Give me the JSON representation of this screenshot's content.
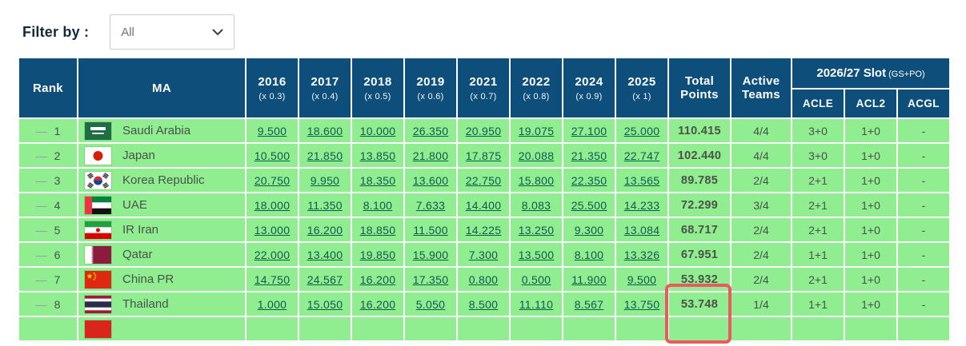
{
  "filter": {
    "label": "Filter by :",
    "value": "All"
  },
  "colors": {
    "header_bg": "#0e4e7b",
    "row_bg": "#90ee90",
    "link": "#10594e",
    "highlight": "#ec5a5f"
  },
  "table": {
    "col_rank": "Rank",
    "col_ma": "MA",
    "year_cols": [
      {
        "year": "2016",
        "mult": "(x 0.3)"
      },
      {
        "year": "2017",
        "mult": "(x 0.4)"
      },
      {
        "year": "2018",
        "mult": "(x 0.5)"
      },
      {
        "year": "2019",
        "mult": "(x 0.6)"
      },
      {
        "year": "2021",
        "mult": "(x 0.7)"
      },
      {
        "year": "2022",
        "mult": "(x 0.8)"
      },
      {
        "year": "2024",
        "mult": "(x 0.9)"
      },
      {
        "year": "2025",
        "mult": "(x 1)"
      }
    ],
    "col_total_line1": "Total",
    "col_total_line2": "Points",
    "col_active_line1": "Active",
    "col_active_line2": "Teams",
    "slot_title": "2026/27 Slot",
    "slot_suffix": "(GS+PO)",
    "slot_cols": [
      "ACLE",
      "ACL2",
      "ACGL"
    ],
    "rows": [
      {
        "trend": "—",
        "rank": "1",
        "flag": "saudi-arabia",
        "country": "Saudi Arabia",
        "scores": [
          "9.500",
          "18.600",
          "10.000",
          "26.350",
          "20.950",
          "19.075",
          "27.100",
          "25.000"
        ],
        "total": "110.415",
        "active": "4/4",
        "slots": [
          "3+0",
          "1+0",
          "-"
        ],
        "total_highlight": false
      },
      {
        "trend": "—",
        "rank": "2",
        "flag": "japan",
        "country": "Japan",
        "scores": [
          "10.500",
          "21.850",
          "13.850",
          "21.800",
          "17.875",
          "20.088",
          "21.350",
          "22.747"
        ],
        "total": "102.440",
        "active": "4/4",
        "slots": [
          "3+0",
          "1+0",
          "-"
        ],
        "total_highlight": false
      },
      {
        "trend": "—",
        "rank": "3",
        "flag": "korea-republic",
        "country": "Korea Republic",
        "scores": [
          "20.750",
          "9.950",
          "18.350",
          "13.600",
          "22.750",
          "15.800",
          "22.350",
          "13.565"
        ],
        "total": "89.785",
        "active": "2/4",
        "slots": [
          "2+1",
          "1+0",
          "-"
        ],
        "total_highlight": false
      },
      {
        "trend": "—",
        "rank": "4",
        "flag": "uae",
        "country": "UAE",
        "scores": [
          "18.000",
          "11.350",
          "8.100",
          "7.633",
          "14.400",
          "8.083",
          "25.500",
          "14.233"
        ],
        "total": "72.299",
        "active": "3/4",
        "slots": [
          "2+1",
          "1+0",
          "-"
        ],
        "total_highlight": false
      },
      {
        "trend": "—",
        "rank": "5",
        "flag": "ir-iran",
        "country": "IR Iran",
        "scores": [
          "13.000",
          "16.200",
          "18.850",
          "11.500",
          "14.225",
          "13.250",
          "9.300",
          "13.084"
        ],
        "total": "68.717",
        "active": "2/4",
        "slots": [
          "2+1",
          "1+0",
          "-"
        ],
        "total_highlight": false
      },
      {
        "trend": "—",
        "rank": "6",
        "flag": "qatar",
        "country": "Qatar",
        "scores": [
          "22.000",
          "13.400",
          "19.850",
          "15.900",
          "7.300",
          "13.500",
          "8.100",
          "13.326"
        ],
        "total": "67.951",
        "active": "2/4",
        "slots": [
          "1+1",
          "1+0",
          "-"
        ],
        "total_highlight": false
      },
      {
        "trend": "—",
        "rank": "7",
        "flag": "china-pr",
        "country": "China PR",
        "scores": [
          "14.750",
          "24.567",
          "16.200",
          "17.350",
          "0.800",
          "0.500",
          "11.900",
          "9.500"
        ],
        "total": "53.932",
        "active": "2/4",
        "slots": [
          "2+1",
          "1+0",
          "-"
        ],
        "total_highlight": true
      },
      {
        "trend": "—",
        "rank": "8",
        "flag": "thailand",
        "country": "Thailand",
        "scores": [
          "1.000",
          "15.050",
          "16.200",
          "5.050",
          "8.500",
          "11.110",
          "8.567",
          "13.750"
        ],
        "total": "53.748",
        "active": "1/4",
        "slots": [
          "1+1",
          "1+0",
          "-"
        ],
        "total_highlight": true
      }
    ],
    "partial_row": {
      "flag": "red"
    }
  }
}
